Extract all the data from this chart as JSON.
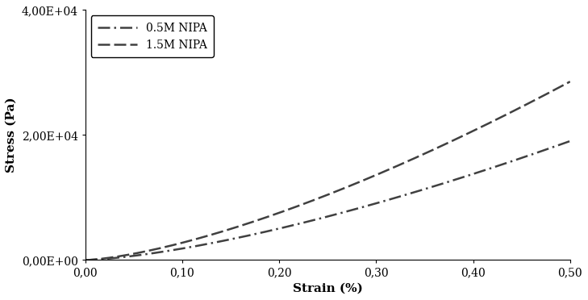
{
  "xlabel": "Strain (%)",
  "ylabel": "Stress (Pa)",
  "xlim": [
    0.0,
    0.5
  ],
  "ylim": [
    0.0,
    40000
  ],
  "yticks": [
    0,
    20000,
    40000
  ],
  "ytick_labels": [
    "0,00E+00",
    "2,00E+04",
    "4,00E+04"
  ],
  "xticks": [
    0.0,
    0.1,
    0.2,
    0.3,
    0.4,
    0.5
  ],
  "xtick_labels": [
    "0,00",
    "0,10",
    "0,20",
    "0,30",
    "0,40",
    "0,50"
  ],
  "series": [
    {
      "label": "0.5M NIPA",
      "color": "#404040",
      "linestyle": "dashdot",
      "linewidth": 1.8,
      "exponent": 1.45,
      "scale": 52000
    },
    {
      "label": "1.5M NIPA",
      "color": "#404040",
      "linestyle": "dashed",
      "linewidth": 1.8,
      "exponent": 1.45,
      "scale": 78000
    }
  ],
  "legend_loc": "upper left",
  "background_color": "#ffffff",
  "label_fontsize": 11,
  "tick_fontsize": 10
}
